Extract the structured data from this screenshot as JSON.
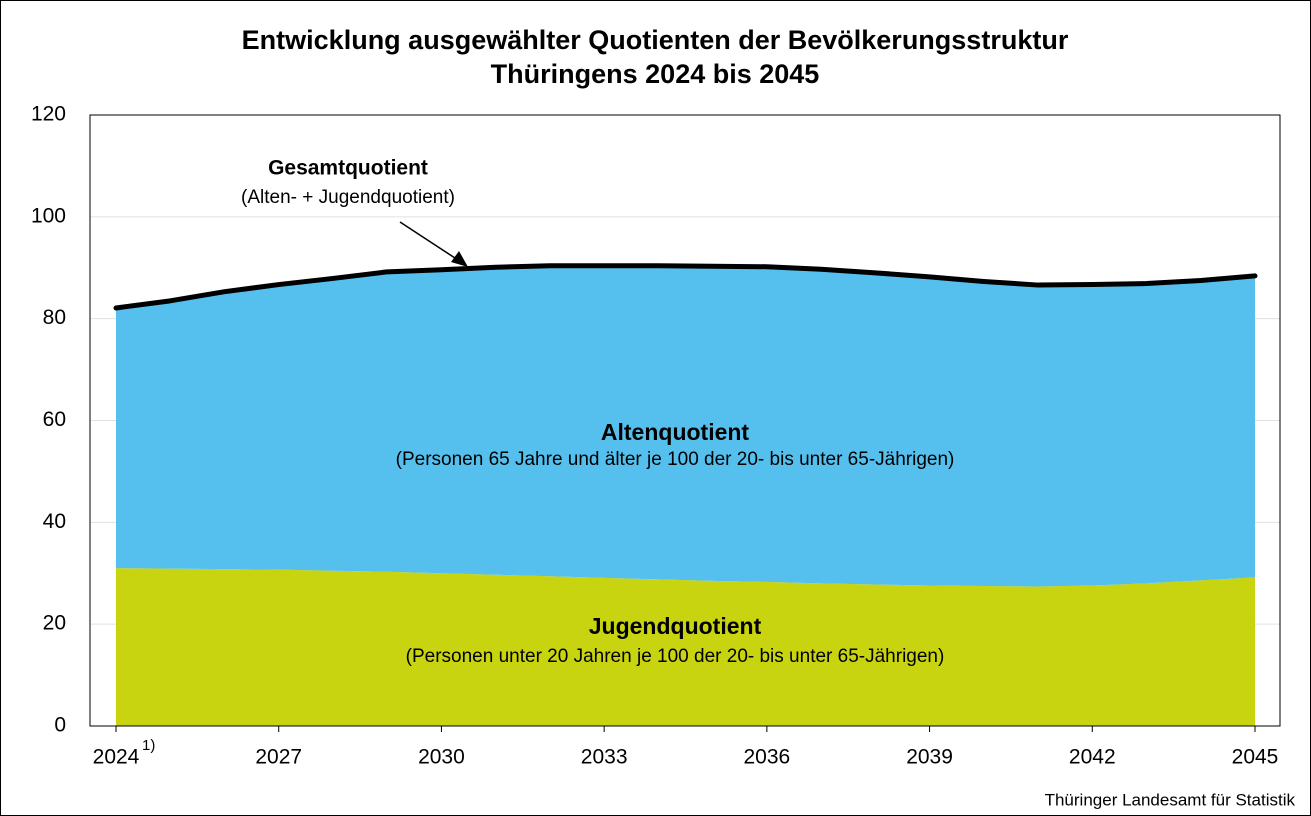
{
  "chart_data": {
    "type": "stacked_area",
    "title": [
      "Entwicklung ausgewählter Quotienten der Bevölkerungsstruktur",
      "Thüringens 2024 bis 2045"
    ],
    "x": [
      2024,
      2025,
      2026,
      2027,
      2028,
      2029,
      2030,
      2031,
      2032,
      2033,
      2034,
      2035,
      2036,
      2037,
      2038,
      2039,
      2040,
      2041,
      2042,
      2043,
      2044,
      2045
    ],
    "xlim": [
      2024,
      2045
    ],
    "xticks": [
      2024,
      2027,
      2030,
      2033,
      2036,
      2039,
      2042,
      2045
    ],
    "x_tick_footnote": "1)",
    "ylim": [
      0,
      120
    ],
    "yticks": [
      0,
      20,
      40,
      60,
      80,
      100,
      120
    ],
    "grid": true,
    "series": [
      {
        "name": "Jugendquotient",
        "description": "(Personen unter 20 Jahren je 100 der 20- bis unter 65-Jährigen)",
        "color": "#c8d40f",
        "values": [
          31.0,
          30.9,
          30.8,
          30.7,
          30.5,
          30.3,
          30.0,
          29.7,
          29.4,
          29.1,
          28.8,
          28.5,
          28.3,
          28.0,
          27.8,
          27.6,
          27.5,
          27.4,
          27.6,
          28.0,
          28.6,
          29.2
        ]
      },
      {
        "name": "Altenquotient",
        "description": "(Personen 65 Jahre und älter je 100 der 20- bis unter 65-Jährigen)",
        "color": "#55c0ee",
        "values": [
          51.1,
          52.6,
          54.5,
          56.0,
          57.4,
          58.9,
          59.6,
          60.4,
          61.0,
          61.3,
          61.6,
          61.8,
          61.9,
          61.7,
          61.2,
          60.6,
          59.8,
          59.2,
          59.1,
          58.9,
          58.9,
          59.2
        ]
      }
    ],
    "total_line": {
      "name": "Gesamtquotient",
      "description": "(Alten- + Jugendquotient)",
      "color": "#000000"
    },
    "source": "Thüringer Landesamt für Statistik"
  }
}
